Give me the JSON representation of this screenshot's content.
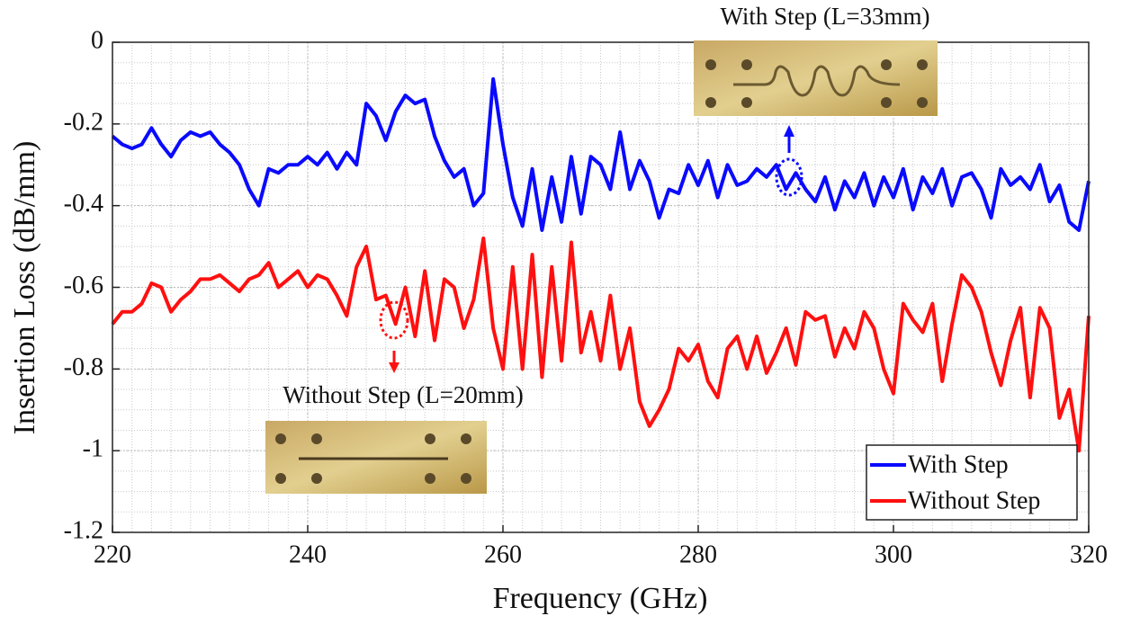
{
  "chart_data": {
    "type": "line",
    "xlabel": "Frequency (GHz)",
    "ylabel": "Insertion Loss (dB/mm)",
    "annotations": [
      "With Step (L=33mm)",
      "Without Step (L=20mm)"
    ],
    "x": [
      220,
      221,
      222,
      223,
      224,
      225,
      226,
      227,
      228,
      229,
      230,
      231,
      232,
      233,
      234,
      235,
      236,
      237,
      238,
      239,
      240,
      241,
      242,
      243,
      244,
      245,
      246,
      247,
      248,
      249,
      250,
      251,
      252,
      253,
      254,
      255,
      256,
      257,
      258,
      259,
      260,
      261,
      262,
      263,
      264,
      265,
      266,
      267,
      268,
      269,
      270,
      271,
      272,
      273,
      274,
      275,
      276,
      277,
      278,
      279,
      280,
      281,
      282,
      283,
      284,
      285,
      286,
      287,
      288,
      289,
      290,
      291,
      292,
      293,
      294,
      295,
      296,
      297,
      298,
      299,
      300,
      301,
      302,
      303,
      304,
      305,
      306,
      307,
      308,
      309,
      310,
      311,
      312,
      313,
      314,
      315,
      316,
      317,
      318,
      319,
      320
    ],
    "series": [
      {
        "name": "With Step",
        "color": "#0a0aff",
        "values": [
          -0.23,
          -0.25,
          -0.26,
          -0.25,
          -0.21,
          -0.25,
          -0.28,
          -0.24,
          -0.22,
          -0.23,
          -0.22,
          -0.25,
          -0.27,
          -0.3,
          -0.36,
          -0.4,
          -0.31,
          -0.32,
          -0.3,
          -0.3,
          -0.28,
          -0.3,
          -0.27,
          -0.31,
          -0.27,
          -0.3,
          -0.15,
          -0.18,
          -0.24,
          -0.17,
          -0.13,
          -0.15,
          -0.14,
          -0.23,
          -0.29,
          -0.33,
          -0.31,
          -0.4,
          -0.37,
          -0.09,
          -0.25,
          -0.38,
          -0.45,
          -0.31,
          -0.46,
          -0.33,
          -0.44,
          -0.28,
          -0.42,
          -0.28,
          -0.3,
          -0.36,
          -0.22,
          -0.36,
          -0.29,
          -0.34,
          -0.43,
          -0.36,
          -0.37,
          -0.3,
          -0.35,
          -0.29,
          -0.38,
          -0.3,
          -0.35,
          -0.34,
          -0.31,
          -0.33,
          -0.3,
          -0.36,
          -0.32,
          -0.36,
          -0.39,
          -0.33,
          -0.41,
          -0.34,
          -0.38,
          -0.32,
          -0.4,
          -0.33,
          -0.38,
          -0.31,
          -0.41,
          -0.33,
          -0.37,
          -0.31,
          -0.4,
          -0.33,
          -0.32,
          -0.36,
          -0.43,
          -0.31,
          -0.35,
          -0.33,
          -0.36,
          -0.3,
          -0.39,
          -0.35,
          -0.44,
          -0.46,
          -0.34
        ]
      },
      {
        "name": "Without Step",
        "color": "#ff1010",
        "values": [
          -0.69,
          -0.66,
          -0.66,
          -0.64,
          -0.59,
          -0.6,
          -0.66,
          -0.63,
          -0.61,
          -0.58,
          -0.58,
          -0.57,
          -0.59,
          -0.61,
          -0.58,
          -0.57,
          -0.54,
          -0.6,
          -0.58,
          -0.56,
          -0.6,
          -0.57,
          -0.58,
          -0.62,
          -0.67,
          -0.55,
          -0.5,
          -0.63,
          -0.62,
          -0.69,
          -0.6,
          -0.72,
          -0.56,
          -0.73,
          -0.58,
          -0.6,
          -0.7,
          -0.63,
          -0.48,
          -0.7,
          -0.8,
          -0.55,
          -0.8,
          -0.52,
          -0.82,
          -0.55,
          -0.78,
          -0.49,
          -0.76,
          -0.66,
          -0.78,
          -0.62,
          -0.8,
          -0.7,
          -0.88,
          -0.94,
          -0.9,
          -0.85,
          -0.75,
          -0.78,
          -0.74,
          -0.83,
          -0.87,
          -0.75,
          -0.72,
          -0.8,
          -0.72,
          -0.81,
          -0.76,
          -0.7,
          -0.79,
          -0.66,
          -0.68,
          -0.67,
          -0.77,
          -0.7,
          -0.75,
          -0.66,
          -0.7,
          -0.8,
          -0.86,
          -0.64,
          -0.68,
          -0.71,
          -0.64,
          -0.83,
          -0.69,
          -0.57,
          -0.6,
          -0.66,
          -0.76,
          -0.84,
          -0.73,
          -0.65,
          -0.87,
          -0.65,
          -0.7,
          -0.92,
          -0.85,
          -1.0,
          -0.67
        ]
      }
    ],
    "xlim": [
      220,
      320
    ],
    "xticks": [
      220,
      240,
      260,
      280,
      300,
      320
    ],
    "ylim": [
      -1.2,
      0
    ],
    "yticks": [
      0,
      -0.2,
      -0.4,
      -0.6,
      -0.8,
      -1,
      -1.2
    ],
    "grid": true,
    "minor_grid": true,
    "legend": "lower right"
  }
}
